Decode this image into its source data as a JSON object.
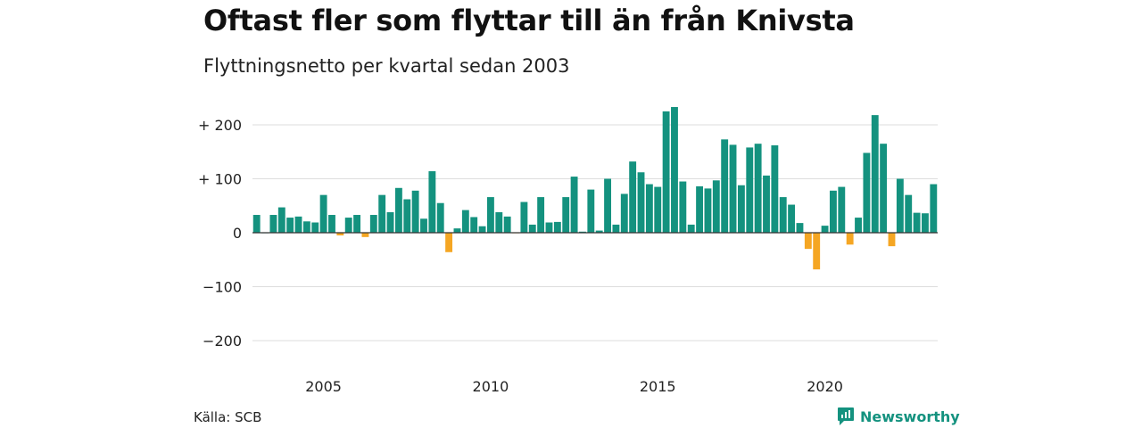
{
  "title": "Oftast fler som flyttar till än från Knivsta",
  "subtitle": "Flyttningsnetto per kvartal sedan 2003",
  "source": "Källa: SCB",
  "brand": "Newsworthy",
  "colors": {
    "positive": "#14927f",
    "negative": "#f5a623",
    "grid": "#dddddd",
    "axis": "#333333"
  },
  "chart_data": {
    "type": "bar",
    "x_start": "2003 Q1",
    "y_ticks": [
      200,
      100,
      0,
      -100,
      -200
    ],
    "y_tick_labels": [
      "+ 200",
      "+ 100",
      "0",
      "−100",
      "−200"
    ],
    "ylim": [
      -210,
      240
    ],
    "x_ticks": [
      2005,
      2010,
      2015,
      2020
    ],
    "x_tick_labels": [
      "2005",
      "2010",
      "2015",
      "2020"
    ],
    "grid": true,
    "values": [
      33,
      0,
      33,
      47,
      28,
      30,
      21,
      19,
      70,
      33,
      -5,
      28,
      33,
      -8,
      33,
      70,
      38,
      83,
      62,
      78,
      26,
      114,
      55,
      -36,
      8,
      42,
      29,
      12,
      66,
      38,
      30,
      -1,
      57,
      15,
      66,
      19,
      20,
      66,
      104,
      2,
      80,
      4,
      100,
      15,
      72,
      132,
      112,
      90,
      85,
      225,
      233,
      95,
      15,
      86,
      82,
      97,
      173,
      163,
      88,
      158,
      165,
      106,
      162,
      66,
      52,
      18,
      -30,
      -68,
      13,
      78,
      85,
      -22,
      28,
      148,
      218,
      165,
      -25,
      100,
      70,
      37,
      36,
      90
    ]
  }
}
